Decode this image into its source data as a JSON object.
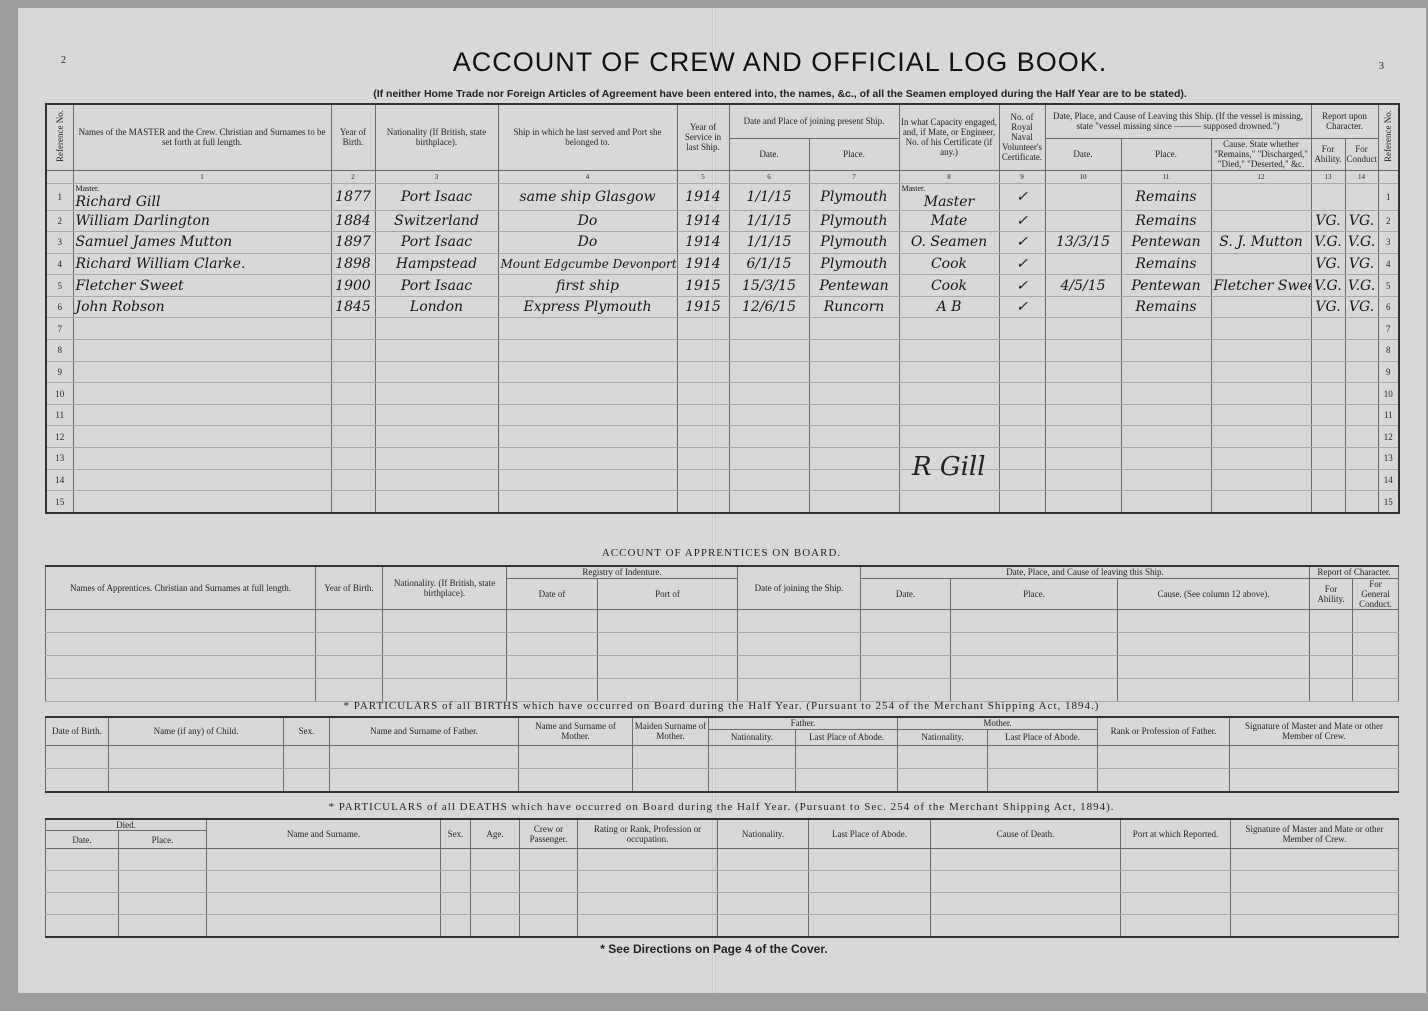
{
  "page_numbers": {
    "left": "2",
    "right": "3"
  },
  "title": "ACCOUNT OF CREW AND OFFICIAL LOG BOOK.",
  "subtitle": "(If neither Home Trade nor Foreign Articles of Agreement have been entered into, the names, &c., of all the Seamen employed during the Half Year are to be stated).",
  "crew": {
    "headers": {
      "ref": "Reference No.",
      "name": "Names of the MASTER and the Crew. Christian and Surnames to be set forth at full length.",
      "year": "Year of Birth.",
      "nationality": "Nationality (If British, state birthplace).",
      "ship": "Ship in which he last served and Port she belonged to.",
      "years_service": "Year of Service in last Ship.",
      "joining": "Date and Place of joining present Ship.",
      "join_date": "Date.",
      "join_place": "Place.",
      "capacity": "In what Capacity engaged, and, if Mate, or Engineer, No. of his Certificate (if any.)",
      "rnvr": "No. of Royal Naval Volunteer's Certificate.",
      "leaving": "Date, Place, and Cause of Leaving this Ship. (If the vessel is missing, state \"vessel missing since ——— supposed drowned.\")",
      "leave_date": "Date.",
      "leave_place": "Place.",
      "cause": "Cause. State whether \"Remains,\" \"Discharged,\" \"Died,\" \"Deserted,\" &c.",
      "report": "Report upon Character.",
      "ability": "For Ability.",
      "conduct": "For Conduct"
    },
    "column_numbers": [
      "1",
      "2",
      "3",
      "4",
      "5",
      "6",
      "7",
      "8",
      "9",
      "10",
      "11",
      "12",
      "13",
      "14"
    ],
    "master_label": "Master.",
    "capacity_master_label": "Master.",
    "rows": [
      {
        "ref": "1",
        "name": "Richard Gill",
        "year": "1877",
        "nationality": "Port Isaac",
        "ship": "same ship Glasgow",
        "years": "1914",
        "join_date": "1/1/15",
        "join_place": "Plymouth",
        "capacity": "Master",
        "rnvr": "✓",
        "leave_date": "",
        "leave_place": "Remains",
        "cause": "",
        "ability": "",
        "conduct": ""
      },
      {
        "ref": "2",
        "name": "William Darlington",
        "year": "1884",
        "nationality": "Switzerland",
        "ship": "Do",
        "years": "1914",
        "join_date": "1/1/15",
        "join_place": "Plymouth",
        "capacity": "Mate",
        "rnvr": "✓",
        "leave_date": "",
        "leave_place": "Remains",
        "cause": "",
        "ability": "VG.",
        "conduct": "VG."
      },
      {
        "ref": "3",
        "name": "Samuel James Mutton",
        "year": "1897",
        "nationality": "Port Isaac",
        "ship": "Do",
        "years": "1914",
        "join_date": "1/1/15",
        "join_place": "Plymouth",
        "capacity": "O. Seamen",
        "rnvr": "✓",
        "leave_date": "13/3/15",
        "leave_place": "Pentewan",
        "cause": "S. J. Mutton",
        "ability": "V.G.",
        "conduct": "V.G."
      },
      {
        "ref": "4",
        "name": "Richard William Clarke.",
        "year": "1898",
        "nationality": "Hampstead",
        "ship": "Mount Edgcumbe Devonport",
        "years": "1914",
        "join_date": "6/1/15",
        "join_place": "Plymouth",
        "capacity": "Cook",
        "rnvr": "✓",
        "leave_date": "",
        "leave_place": "Remains",
        "cause": "",
        "ability": "VG.",
        "conduct": "VG."
      },
      {
        "ref": "5",
        "name": "Fletcher Sweet",
        "year": "1900",
        "nationality": "Port Isaac",
        "ship": "first ship",
        "years": "1915",
        "join_date": "15/3/15",
        "join_place": "Pentewan",
        "capacity": "Cook",
        "rnvr": "✓",
        "leave_date": "4/5/15",
        "leave_place": "Pentewan",
        "cause": "Fletcher Sweet",
        "ability": "V.G.",
        "conduct": "V.G."
      },
      {
        "ref": "6",
        "name": "John Robson",
        "year": "1845",
        "nationality": "London",
        "ship": "Express Plymouth",
        "years": "1915",
        "join_date": "12/6/15",
        "join_place": "Runcorn",
        "capacity": "A B",
        "rnvr": "✓",
        "leave_date": "",
        "leave_place": "Remains",
        "cause": "",
        "ability": "VG.",
        "conduct": "VG."
      },
      {
        "ref": "7"
      },
      {
        "ref": "8"
      },
      {
        "ref": "9"
      },
      {
        "ref": "10"
      },
      {
        "ref": "11"
      },
      {
        "ref": "12"
      },
      {
        "ref": "13"
      },
      {
        "ref": "14"
      },
      {
        "ref": "15"
      }
    ],
    "signature": "R Gill"
  },
  "apprentices": {
    "title": "ACCOUNT OF APPRENTICES ON BOARD.",
    "headers": {
      "name": "Names of Apprentices. Christian and Surnames at full length.",
      "year": "Year of Birth.",
      "nationality": "Nationality. (If British, state birthplace).",
      "registry": "Registry of Indenture.",
      "date_of": "Date of",
      "port_of": "Port of",
      "joining": "Date of joining the Ship.",
      "leaving": "Date, Place, and Cause of leaving this Ship.",
      "date": "Date.",
      "place": "Place.",
      "cause": "Cause. (See column 12 above).",
      "report": "Report of Character.",
      "ability": "For Ability.",
      "conduct": "For General Conduct."
    }
  },
  "births": {
    "title": "* PARTICULARS of all BIRTHS which have occurred on Board during the Half Year.     (Pursuant to 254 of the Merchant Shipping Act, 1894.)",
    "headers": {
      "date": "Date of Birth.",
      "child": "Name (if any) of Child.",
      "sex": "Sex.",
      "father_name": "Name and Surname of Father.",
      "mother_name": "Name and Surname of Mother.",
      "maiden": "Maiden Surname of Mother.",
      "father": "Father.",
      "mother": "Mother.",
      "nationality": "Nationality.",
      "abode": "Last Place of Abode.",
      "rank": "Rank or Profession of Father.",
      "signature": "Signature of Master and Mate or other Member of Crew."
    }
  },
  "deaths": {
    "title": "* PARTICULARS of all DEATHS which have occurred on Board during the Half Year.     (Pursuant to Sec. 254 of the Merchant Shipping Act, 1894).",
    "headers": {
      "died": "Died.",
      "date": "Date.",
      "place": "Place.",
      "name": "Name and Surname.",
      "sex": "Sex.",
      "age": "Age.",
      "crew": "Crew or Passenger.",
      "rating": "Rating or Rank, Profession or occupation.",
      "nationality": "Nationality.",
      "abode": "Last Place of Abode.",
      "cause": "Cause of Death.",
      "port": "Port at which Reported.",
      "signature": "Signature of Master and Mate or other Member of Crew."
    }
  },
  "footer": "* See Directions on Page 4 of the Cover."
}
